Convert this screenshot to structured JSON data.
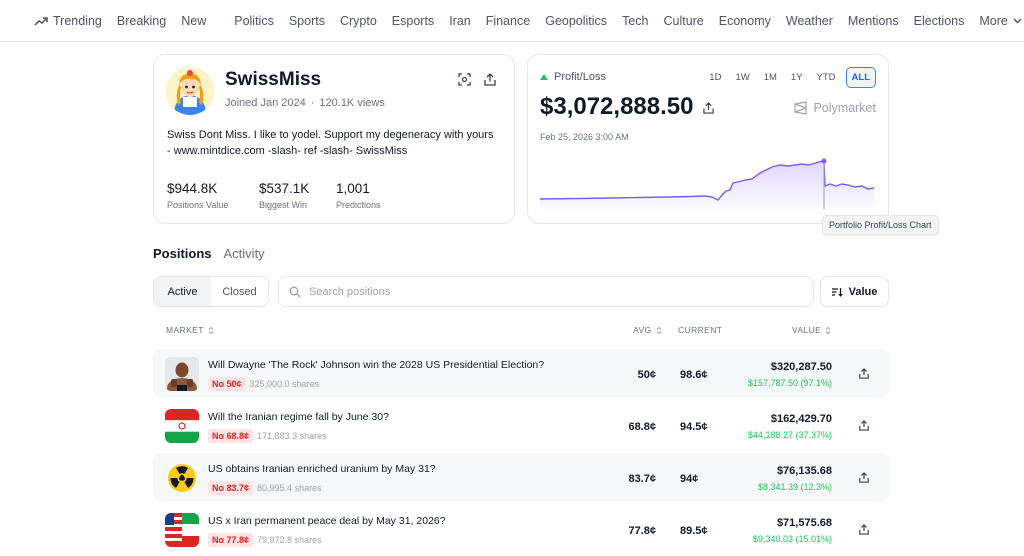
{
  "nav": {
    "trending": "Trending",
    "breaking": "Breaking",
    "new": "New",
    "categories": [
      "Politics",
      "Sports",
      "Crypto",
      "Esports",
      "Iran",
      "Finance",
      "Geopolitics",
      "Tech",
      "Culture",
      "Economy",
      "Weather",
      "Mentions",
      "Elections"
    ],
    "more": "More"
  },
  "profile": {
    "username": "SwissMiss",
    "joined": "Joined Jan 2024",
    "views": "120.1K views",
    "bio": "Swiss Dont Miss. I like to yodel. Support my degeneracy with yours - www.mintdice.com -slash- ref -slash- SwissMiss",
    "stats": [
      {
        "value": "$944.8K",
        "label": "Positions Value"
      },
      {
        "value": "$537.1K",
        "label": "Biggest Win"
      },
      {
        "value": "1,001",
        "label": "Predictions"
      }
    ]
  },
  "pnl": {
    "label": "Profit/Loss",
    "ranges": [
      "1D",
      "1W",
      "1M",
      "1Y",
      "YTD",
      "ALL"
    ],
    "active_range": "ALL",
    "amount": "$3,072,888.50",
    "brand": "Polymarket",
    "date": "Feb 25, 2026 3:00 AM",
    "tooltip": "Portfolio Profit/Loss Chart",
    "line_color": "#7c5cf0"
  },
  "tabs": {
    "positions": "Positions",
    "activity": "Activity"
  },
  "filters": {
    "active": "Active",
    "closed": "Closed",
    "search_placeholder": "Search positions",
    "sort": "Value"
  },
  "table": {
    "headers": {
      "market": "MARKET",
      "avg": "AVG",
      "current": "CURRENT",
      "value": "VALUE"
    },
    "rows": [
      {
        "thumb": "rock-icon",
        "title": "Will Dwayne 'The Rock' Johnson win the 2028 US Presidential Election?",
        "badge": "No 50¢",
        "shares": "325,000.0 shares",
        "avg": "50¢",
        "current": "98.6¢",
        "value": "$320,287.50",
        "gain": "$157,787.50 (97.1%)"
      },
      {
        "thumb": "iran-flag-icon",
        "title": "Will the Iranian regime fall by June 30?",
        "badge": "No 68.8¢",
        "shares": "171,883.3 shares",
        "avg": "68.8¢",
        "current": "94.5¢",
        "value": "$162,429.70",
        "gain": "$44,188.27 (37.37%)"
      },
      {
        "thumb": "radiation-icon",
        "title": "US obtains Iranian enriched uranium by May 31?",
        "badge": "No 83.7¢",
        "shares": "80,995.4 shares",
        "avg": "83.7¢",
        "current": "94¢",
        "value": "$76,135.68",
        "gain": "$8,341.39 (12.3%)"
      },
      {
        "thumb": "us-iran-flags-icon",
        "title": "US x Iran permanent peace deal by May 31, 2026?",
        "badge": "No 77.8¢",
        "shares": "79,972.8 shares",
        "avg": "77.8¢",
        "current": "89.5¢",
        "value": "$71,575.68",
        "gain": "$9,340.03 (15.01%)"
      }
    ]
  }
}
